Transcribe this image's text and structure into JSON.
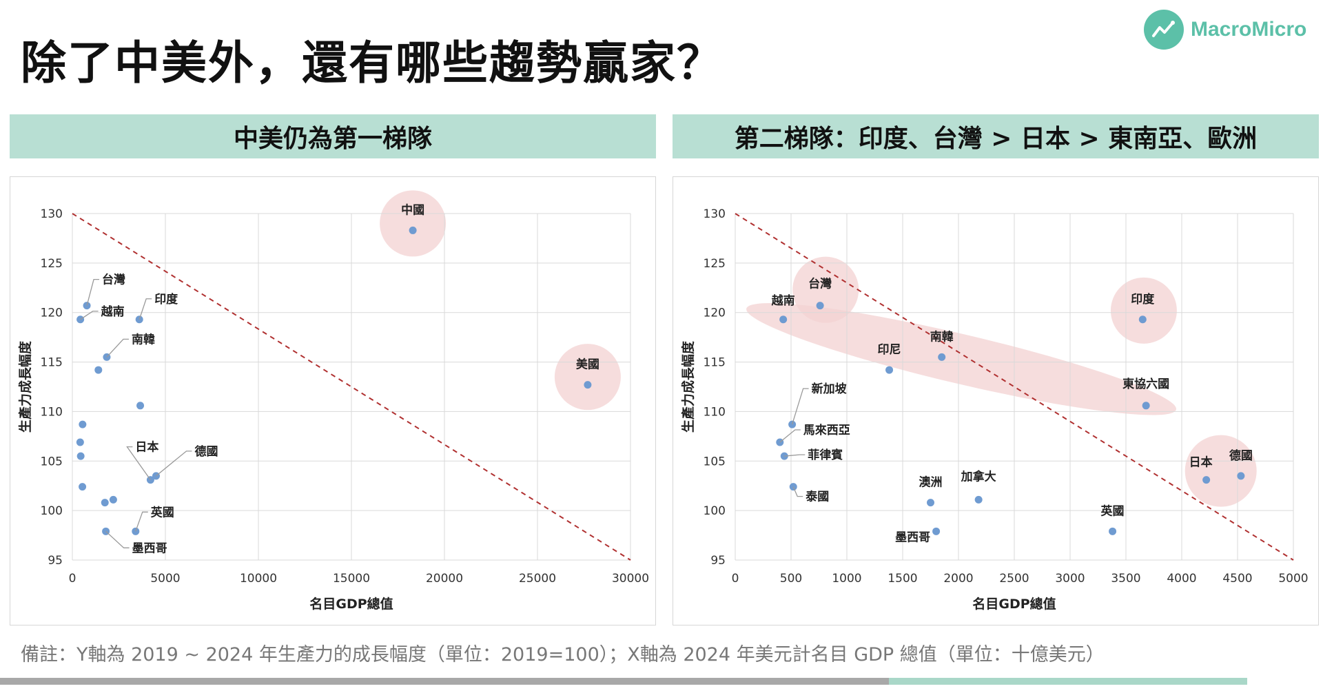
{
  "page_title": "除了中美外，還有哪些趨勢贏家？",
  "logo": {
    "text": "MacroMicro",
    "icon": "chart-line-icon",
    "color": "#5cc0a8"
  },
  "left_header": "中美仍為第一梯隊",
  "right_header": "第二梯隊：印度、台灣 > 日本 > 東南亞、歐洲",
  "footnote": "備註：Y軸為 2019 ~ 2024 年生產力的成長幅度（單位：2019=100）；X軸為 2024 年美元計名目 GDP 總值（單位：十億美元）",
  "colors": {
    "banner": "#b8dfd3",
    "point": "#6f9bd1",
    "highlight": "#f3d1d1",
    "trendline": "#b03030",
    "accent": "#5cc0a8"
  },
  "chart_data": [
    {
      "type": "scatter",
      "title": "中美仍為第一梯隊",
      "xlabel": "名目GDP總值",
      "ylabel": "生產力成長幅度",
      "xlim": [
        0,
        30000
      ],
      "ylim": [
        95,
        130
      ],
      "xticks": [
        "0",
        "5000",
        "10000",
        "15000",
        "20000",
        "25000",
        "30000"
      ],
      "yticks": [
        "95",
        "100",
        "105",
        "110",
        "115",
        "120",
        "125",
        "130"
      ],
      "grid": true,
      "trendline": {
        "style": "dashed",
        "from": [
          0,
          130
        ],
        "to": [
          30000,
          95
        ]
      },
      "points": [
        {
          "label": "中國",
          "x": 18300,
          "y": 128.3,
          "highlight": true
        },
        {
          "label": "美國",
          "x": 27700,
          "y": 112.7,
          "highlight": true
        },
        {
          "label": "台灣",
          "x": 780,
          "y": 120.7
        },
        {
          "label": "越南",
          "x": 430,
          "y": 119.3
        },
        {
          "label": "印度",
          "x": 3600,
          "y": 119.3
        },
        {
          "label": "南韓",
          "x": 1850,
          "y": 115.5
        },
        {
          "label": "",
          "x": 1400,
          "y": 114.2
        },
        {
          "label": "",
          "x": 3650,
          "y": 110.6
        },
        {
          "label": "",
          "x": 550,
          "y": 108.7
        },
        {
          "label": "",
          "x": 420,
          "y": 106.9
        },
        {
          "label": "",
          "x": 450,
          "y": 105.5
        },
        {
          "label": "",
          "x": 540,
          "y": 102.4
        },
        {
          "label": "日本",
          "x": 4200,
          "y": 103.1
        },
        {
          "label": "德國",
          "x": 4500,
          "y": 103.5
        },
        {
          "label": "",
          "x": 1750,
          "y": 100.8
        },
        {
          "label": "",
          "x": 2200,
          "y": 101.1
        },
        {
          "label": "英國",
          "x": 3400,
          "y": 97.9
        },
        {
          "label": "墨西哥",
          "x": 1800,
          "y": 97.9
        }
      ]
    },
    {
      "type": "scatter",
      "title": "第二梯隊：印度、台灣 > 日本 > 東南亞、歐洲",
      "xlabel": "名目GDP總值",
      "ylabel": "生產力成長幅度",
      "xlim": [
        0,
        5000
      ],
      "ylim": [
        95,
        130
      ],
      "xticks": [
        "0",
        "500",
        "1000",
        "1500",
        "2000",
        "2500",
        "3000",
        "3500",
        "4000",
        "4500",
        "5000"
      ],
      "yticks": [
        "95",
        "100",
        "105",
        "110",
        "115",
        "120",
        "125",
        "130"
      ],
      "grid": true,
      "trendline": {
        "style": "dashed",
        "from": [
          0,
          130
        ],
        "to": [
          5000,
          95
        ]
      },
      "points": [
        {
          "label": "越南",
          "x": 430,
          "y": 119.3
        },
        {
          "label": "台灣",
          "x": 760,
          "y": 120.7
        },
        {
          "label": "印尼",
          "x": 1380,
          "y": 114.2
        },
        {
          "label": "南韓",
          "x": 1850,
          "y": 115.5
        },
        {
          "label": "印度",
          "x": 3650,
          "y": 119.3
        },
        {
          "label": "東協六國",
          "x": 3680,
          "y": 110.6
        },
        {
          "label": "新加坡",
          "x": 510,
          "y": 108.7
        },
        {
          "label": "馬來西亞",
          "x": 400,
          "y": 106.9
        },
        {
          "label": "菲律賓",
          "x": 440,
          "y": 105.5
        },
        {
          "label": "泰國",
          "x": 520,
          "y": 102.4
        },
        {
          "label": "澳洲",
          "x": 1750,
          "y": 100.8
        },
        {
          "label": "加拿大",
          "x": 2180,
          "y": 101.1
        },
        {
          "label": "墨西哥",
          "x": 1800,
          "y": 97.9
        },
        {
          "label": "英國",
          "x": 3380,
          "y": 97.9
        },
        {
          "label": "日本",
          "x": 4220,
          "y": 103.1
        },
        {
          "label": "德國",
          "x": 4530,
          "y": 103.5
        }
      ]
    }
  ]
}
